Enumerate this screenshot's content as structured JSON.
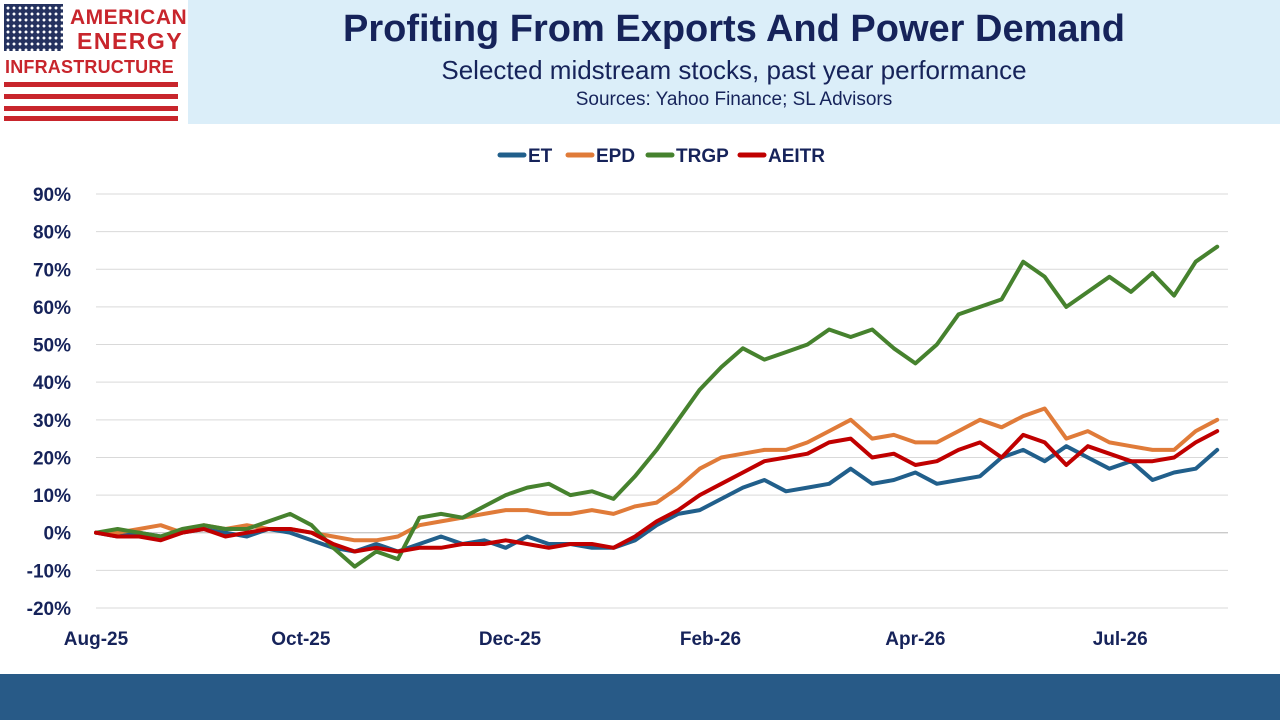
{
  "logo": {
    "line1": "AMERICAN",
    "line2": "ENERGY",
    "line3": "INFRASTRUCTURE"
  },
  "header": {
    "title": "Profiting From Exports And Power Demand",
    "subtitle": "Selected midstream stocks, past year performance",
    "source": "Sources: Yahoo Finance; SL Advisors"
  },
  "colors": {
    "header_bg": "#dbeef9",
    "title": "#16235a",
    "footer": "#285a87",
    "logo_red": "#c8252c",
    "logo_blue": "#25325f"
  },
  "chart_data": {
    "type": "line",
    "title": "",
    "xlabel": "",
    "ylabel": "",
    "ylim": [
      -0.2,
      0.9
    ],
    "yticks": [
      "-20%",
      "-10%",
      "0%",
      "10%",
      "20%",
      "30%",
      "40%",
      "50%",
      "60%",
      "70%",
      "80%",
      "90%"
    ],
    "xticks": [
      "Aug-25",
      "Oct-25",
      "Dec-25",
      "Feb-26",
      "Apr-26",
      "Jul-26"
    ],
    "x_range_weeks": [
      0,
      52.5
    ],
    "xtick_weeks": [
      0,
      9.5,
      19.2,
      28.5,
      38,
      47.5
    ],
    "grid": "horizontal",
    "legend": "top-center",
    "series": [
      {
        "name": "ET",
        "color": "#215f8b",
        "x": [
          0,
          1,
          2,
          3,
          4,
          5,
          6,
          7,
          8,
          9,
          10,
          11,
          12,
          13,
          14,
          15,
          16,
          17,
          18,
          19,
          20,
          21,
          22,
          23,
          24,
          25,
          26,
          27,
          28,
          29,
          30,
          31,
          32,
          33,
          34,
          35,
          36,
          37,
          38,
          39,
          40,
          41,
          42,
          43,
          44,
          45,
          46,
          47,
          48,
          49,
          50,
          51,
          52
        ],
        "values": [
          0.0,
          -0.01,
          0.0,
          -0.01,
          0.0,
          0.01,
          0.0,
          -0.01,
          0.01,
          0.0,
          -0.02,
          -0.04,
          -0.05,
          -0.03,
          -0.05,
          -0.03,
          -0.01,
          -0.03,
          -0.02,
          -0.04,
          -0.01,
          -0.03,
          -0.03,
          -0.04,
          -0.04,
          -0.02,
          0.02,
          0.05,
          0.06,
          0.09,
          0.12,
          0.14,
          0.11,
          0.12,
          0.13,
          0.17,
          0.13,
          0.14,
          0.16,
          0.13,
          0.14,
          0.15,
          0.2,
          0.22,
          0.19,
          0.23,
          0.2,
          0.17,
          0.19,
          0.14,
          0.16,
          0.17,
          0.22
        ]
      },
      {
        "name": "EPD",
        "color": "#e07b39",
        "x": [
          0,
          1,
          2,
          3,
          4,
          5,
          6,
          7,
          8,
          9,
          10,
          11,
          12,
          13,
          14,
          15,
          16,
          17,
          18,
          19,
          20,
          21,
          22,
          23,
          24,
          25,
          26,
          27,
          28,
          29,
          30,
          31,
          32,
          33,
          34,
          35,
          36,
          37,
          38,
          39,
          40,
          41,
          42,
          43,
          44,
          45,
          46,
          47,
          48,
          49,
          50,
          51,
          52
        ],
        "values": [
          0.0,
          0.0,
          0.01,
          0.02,
          0.0,
          0.02,
          0.01,
          0.02,
          0.01,
          0.01,
          0.0,
          -0.01,
          -0.02,
          -0.02,
          -0.01,
          0.02,
          0.03,
          0.04,
          0.05,
          0.06,
          0.06,
          0.05,
          0.05,
          0.06,
          0.05,
          0.07,
          0.08,
          0.12,
          0.17,
          0.2,
          0.21,
          0.22,
          0.22,
          0.24,
          0.27,
          0.3,
          0.25,
          0.26,
          0.24,
          0.24,
          0.27,
          0.3,
          0.28,
          0.31,
          0.33,
          0.25,
          0.27,
          0.24,
          0.23,
          0.22,
          0.22,
          0.27,
          0.3
        ]
      },
      {
        "name": "TRGP",
        "color": "#46822e",
        "x": [
          0,
          1,
          2,
          3,
          4,
          5,
          6,
          7,
          8,
          9,
          10,
          11,
          12,
          13,
          14,
          15,
          16,
          17,
          18,
          19,
          20,
          21,
          22,
          23,
          24,
          25,
          26,
          27,
          28,
          29,
          30,
          31,
          32,
          33,
          34,
          35,
          36,
          37,
          38,
          39,
          40,
          41,
          42,
          43,
          44,
          45,
          46,
          47,
          48,
          49,
          50,
          51,
          52
        ],
        "values": [
          0.0,
          0.01,
          0.0,
          -0.01,
          0.01,
          0.02,
          0.01,
          0.01,
          0.03,
          0.05,
          0.02,
          -0.04,
          -0.09,
          -0.05,
          -0.07,
          0.04,
          0.05,
          0.04,
          0.07,
          0.1,
          0.12,
          0.13,
          0.1,
          0.11,
          0.09,
          0.15,
          0.22,
          0.3,
          0.38,
          0.44,
          0.49,
          0.46,
          0.48,
          0.5,
          0.54,
          0.52,
          0.54,
          0.49,
          0.45,
          0.5,
          0.58,
          0.6,
          0.62,
          0.72,
          0.68,
          0.6,
          0.64,
          0.68,
          0.64,
          0.69,
          0.63,
          0.72,
          0.76
        ]
      },
      {
        "name": "AEITR",
        "color": "#c00000",
        "x": [
          0,
          1,
          2,
          3,
          4,
          5,
          6,
          7,
          8,
          9,
          10,
          11,
          12,
          13,
          14,
          15,
          16,
          17,
          18,
          19,
          20,
          21,
          22,
          23,
          24,
          25,
          26,
          27,
          28,
          29,
          30,
          31,
          32,
          33,
          34,
          35,
          36,
          37,
          38,
          39,
          40,
          41,
          42,
          43,
          44,
          45,
          46,
          47,
          48,
          49,
          50,
          51,
          52
        ],
        "values": [
          0.0,
          -0.01,
          -0.01,
          -0.02,
          0.0,
          0.01,
          -0.01,
          0.0,
          0.01,
          0.01,
          0.0,
          -0.03,
          -0.05,
          -0.04,
          -0.05,
          -0.04,
          -0.04,
          -0.03,
          -0.03,
          -0.02,
          -0.03,
          -0.04,
          -0.03,
          -0.03,
          -0.04,
          -0.01,
          0.03,
          0.06,
          0.1,
          0.13,
          0.16,
          0.19,
          0.2,
          0.21,
          0.24,
          0.25,
          0.2,
          0.21,
          0.18,
          0.19,
          0.22,
          0.24,
          0.2,
          0.26,
          0.24,
          0.18,
          0.23,
          0.21,
          0.19,
          0.19,
          0.2,
          0.24,
          0.27
        ]
      }
    ]
  }
}
